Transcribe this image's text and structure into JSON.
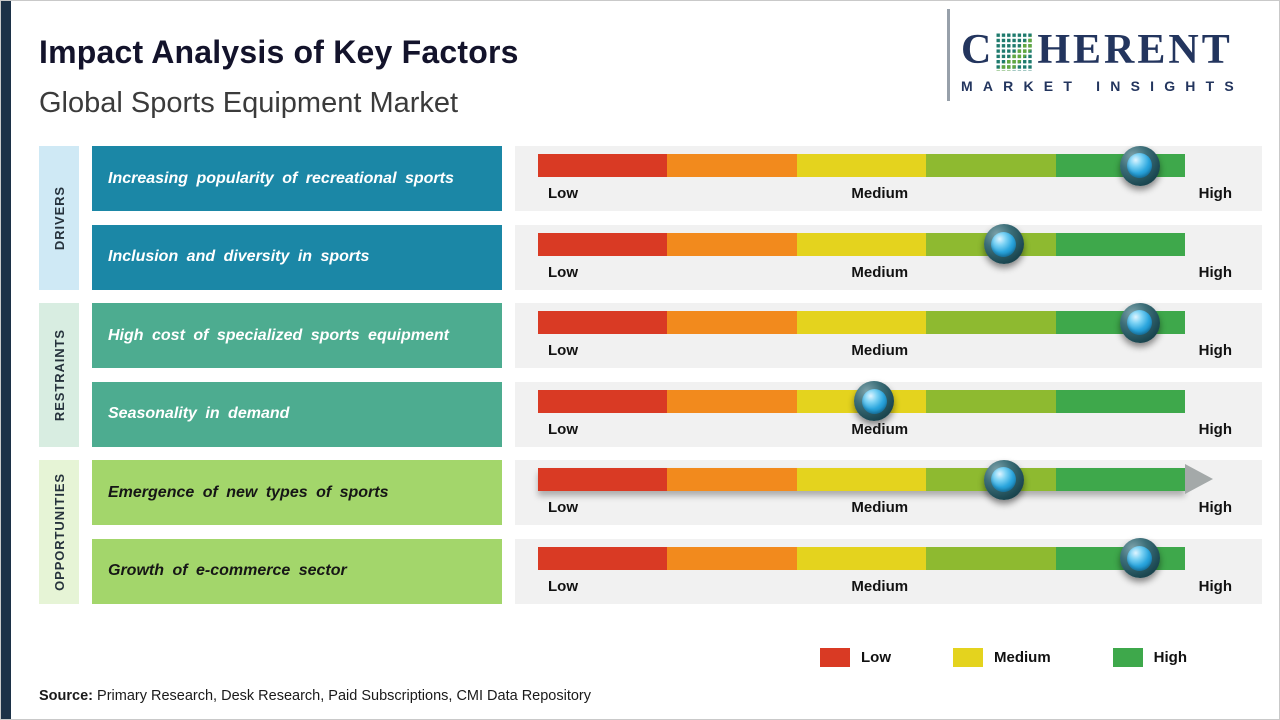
{
  "page": {
    "title": "Impact Analysis of Key Factors",
    "subtitle": "Global Sports Equipment Market",
    "source_label": "Source:",
    "source_text": " Primary Research, Desk Research, Paid Subscriptions, CMI Data Repository"
  },
  "logo": {
    "name_prefix": "C",
    "name_suffix": "HERENT",
    "tagline": "MARKET INSIGHTS"
  },
  "scale": {
    "low": "Low",
    "medium": "Medium",
    "high": "High"
  },
  "groups": [
    {
      "name": "DRIVERS"
    },
    {
      "name": "RESTRAINTS"
    },
    {
      "name": "OPPORTUNITIES"
    }
  ],
  "rows": [
    {
      "group": "DRIVERS",
      "label": "Increasing popularity of recreational sports",
      "impact_pct": 93,
      "impact_level": "High"
    },
    {
      "group": "DRIVERS",
      "label": "Inclusion and diversity in sports",
      "impact_pct": 72,
      "impact_level": "Medium-High"
    },
    {
      "group": "RESTRAINTS",
      "label": "High cost of specialized sports equipment",
      "impact_pct": 93,
      "impact_level": "High"
    },
    {
      "group": "RESTRAINTS",
      "label": "Seasonality in demand",
      "impact_pct": 52,
      "impact_level": "Medium"
    },
    {
      "group": "OPPORTUNITIES",
      "label": "Emergence of new types of sports",
      "impact_pct": 72,
      "impact_level": "Medium-High"
    },
    {
      "group": "OPPORTUNITIES",
      "label": "Growth of e-commerce sector",
      "impact_pct": 93,
      "impact_level": "High"
    }
  ],
  "legend": {
    "items": [
      {
        "label": "Low",
        "color": "#d93a24"
      },
      {
        "label": "Medium",
        "color": "#e4d31e"
      },
      {
        "label": "High",
        "color": "#3ea84b"
      }
    ]
  },
  "colors": {
    "accent_strip": "#1c3147",
    "drivers_box": "#1b87a6",
    "restraints_box": "#4dac90",
    "opportunities_box": "#a3d66b",
    "drivers_side": "#cfe9f5",
    "restraints_side": "#d8ede1",
    "opportunities_side": "#e6f4d6",
    "bar_segments": [
      "#d93a24",
      "#f28a1d",
      "#e4d31e",
      "#8eba30",
      "#3ea84b"
    ]
  },
  "chart_data": {
    "type": "bar",
    "title": "Impact Analysis of Key Factors",
    "subtitle": "Global Sports Equipment Market",
    "x_axis": {
      "labels": [
        "Low",
        "Medium",
        "High"
      ],
      "range_pct": [
        0,
        100
      ]
    },
    "legend": [
      "Low",
      "Medium",
      "High"
    ],
    "legend_position": "bottom-right",
    "categories": [
      "Increasing popularity of recreational sports",
      "Inclusion and diversity in sports",
      "High cost of specialized sports equipment",
      "Seasonality in demand",
      "Emergence of new types of sports",
      "Growth of e-commerce sector"
    ],
    "category_groups": [
      "Drivers",
      "Drivers",
      "Restraints",
      "Restraints",
      "Opportunities",
      "Opportunities"
    ],
    "values_pct": [
      93,
      72,
      93,
      52,
      72,
      93
    ],
    "impact_levels": [
      "High",
      "Medium-High",
      "High",
      "Medium",
      "Medium-High",
      "High"
    ],
    "source": "Primary Research, Desk Research, Paid Subscriptions, CMI Data Repository"
  }
}
